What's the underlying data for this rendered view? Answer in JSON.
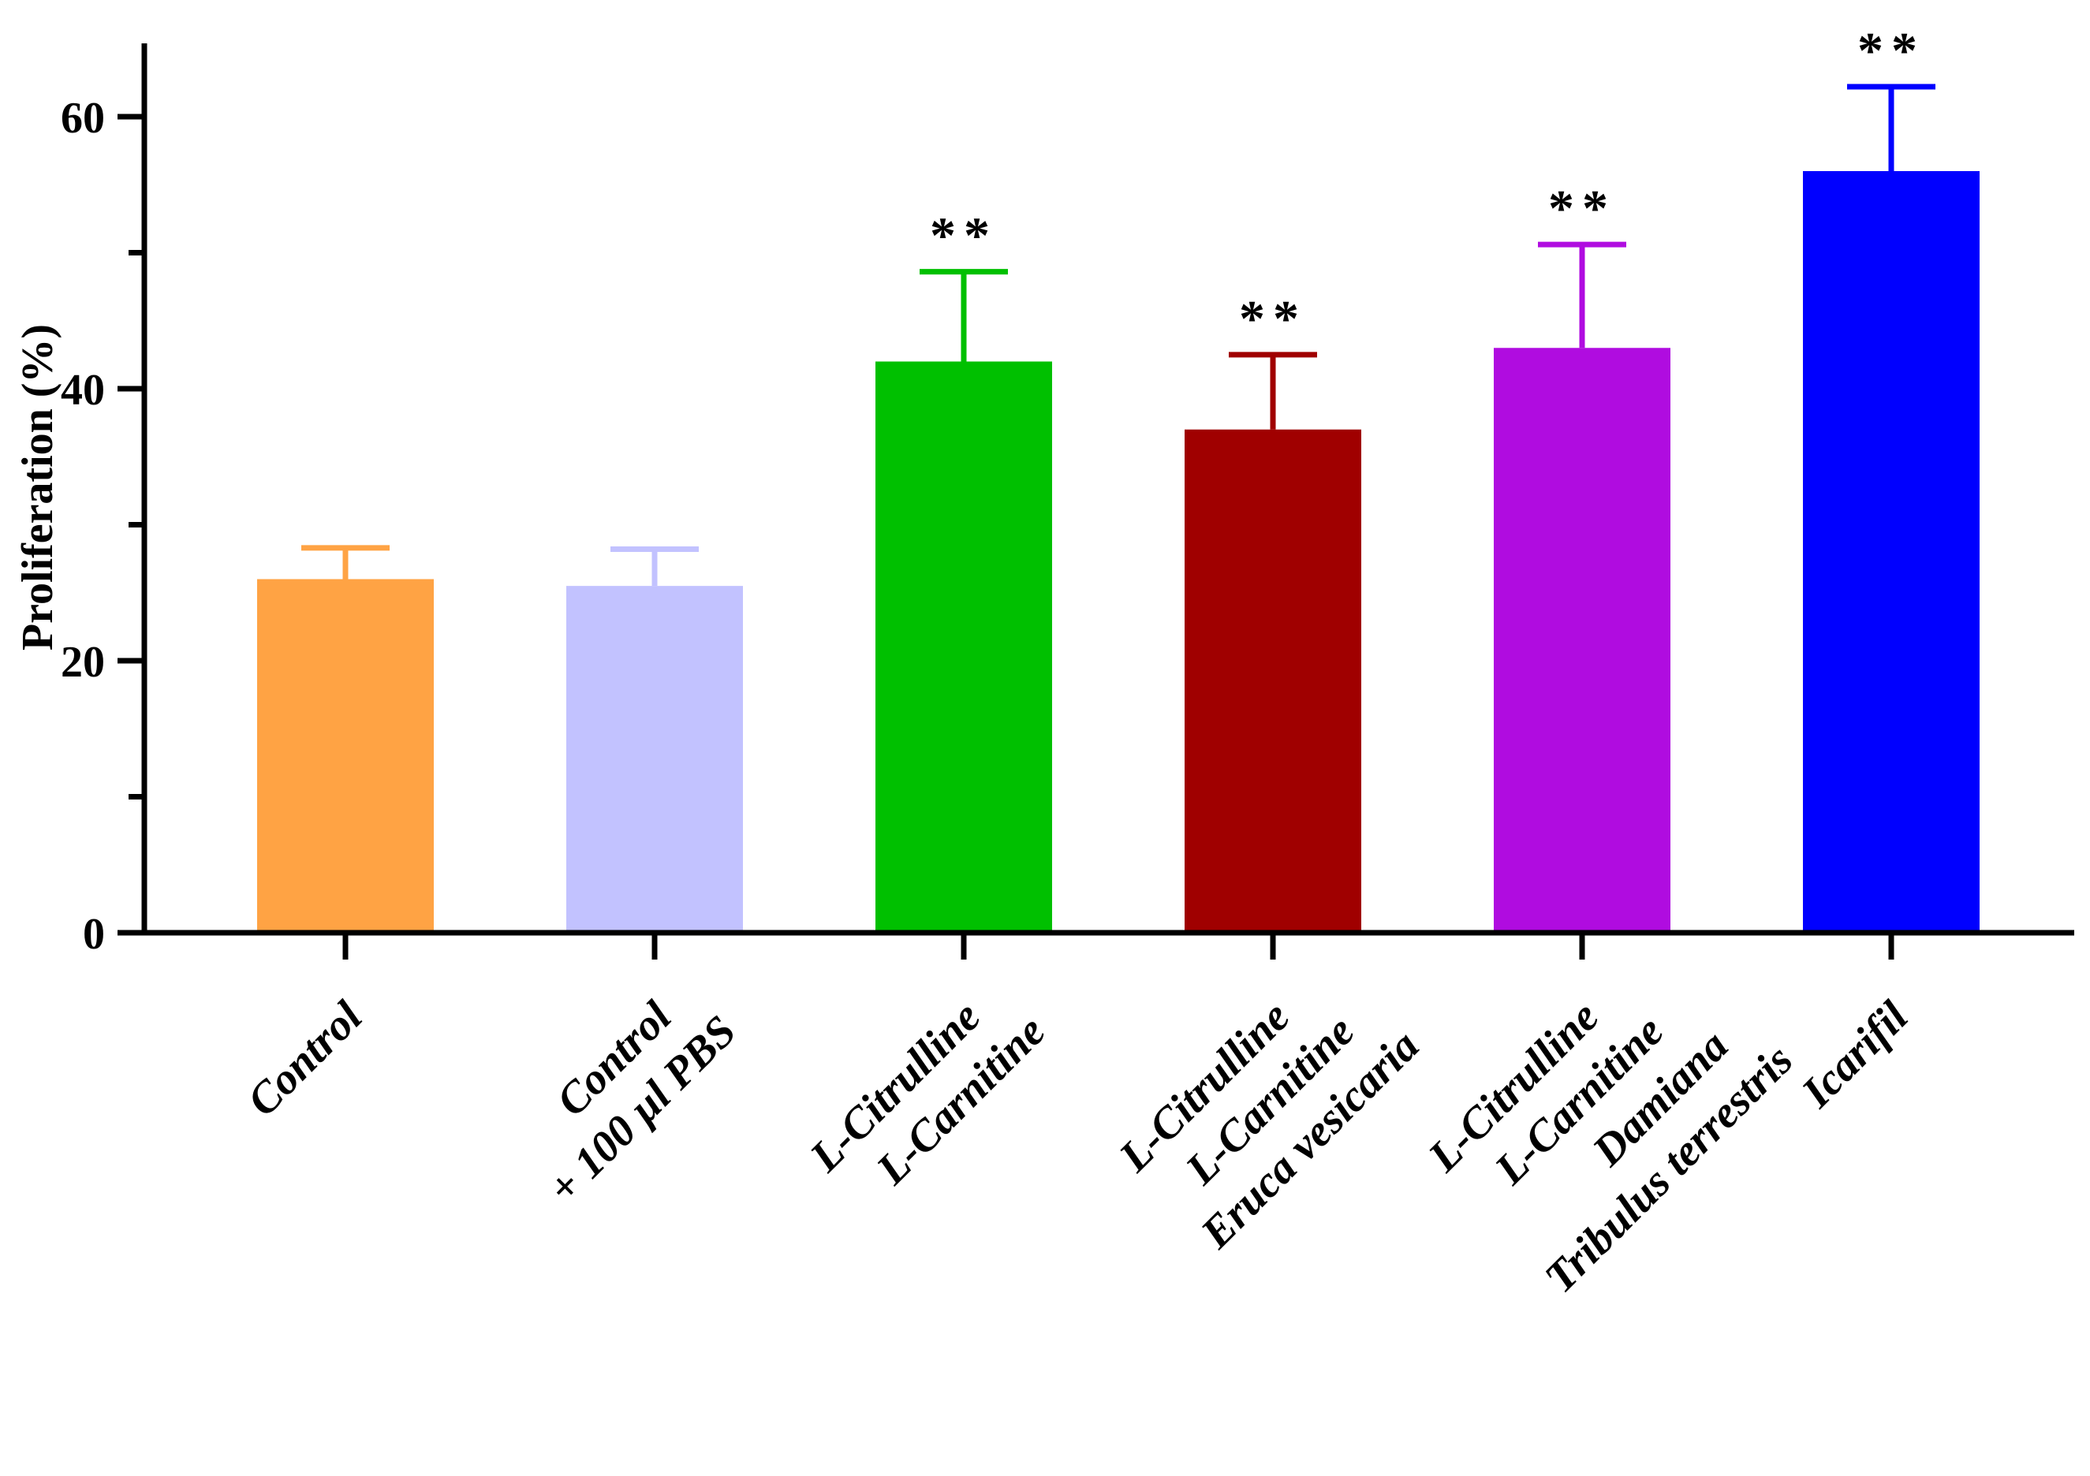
{
  "chart_data": {
    "type": "bar",
    "title": "",
    "xlabel": "",
    "ylabel": "Proliferation (%)",
    "ylim": [
      0,
      65
    ],
    "y_ticks": [
      0,
      20,
      40,
      60
    ],
    "y_minor_ticks": [
      10,
      30,
      50
    ],
    "grid": false,
    "categories": [
      {
        "lines": [
          "Control"
        ]
      },
      {
        "lines": [
          "Control",
          "+ 100 µl PBS"
        ]
      },
      {
        "lines": [
          "L-Citrulline",
          "L-Carnitine"
        ]
      },
      {
        "lines": [
          "L-Citrulline",
          "L-Carnitine",
          "Eruca vesicaria"
        ]
      },
      {
        "lines": [
          "L-Citrulline",
          "L-Carnitine",
          "Damiana",
          "Tribulus terrestris"
        ]
      },
      {
        "lines": [
          "Icarifil"
        ]
      }
    ],
    "values": [
      26.0,
      25.5,
      42.0,
      37.0,
      43.0,
      56.0
    ],
    "errors": [
      2.3,
      2.7,
      6.6,
      5.5,
      7.6,
      6.2
    ],
    "significance": [
      "",
      "",
      "**",
      "**",
      "**",
      "**"
    ],
    "colors": [
      "#FFA344",
      "#C2C2FF",
      "#00C000",
      "#A00000",
      "#B00CE0",
      "#0000FF"
    ]
  }
}
